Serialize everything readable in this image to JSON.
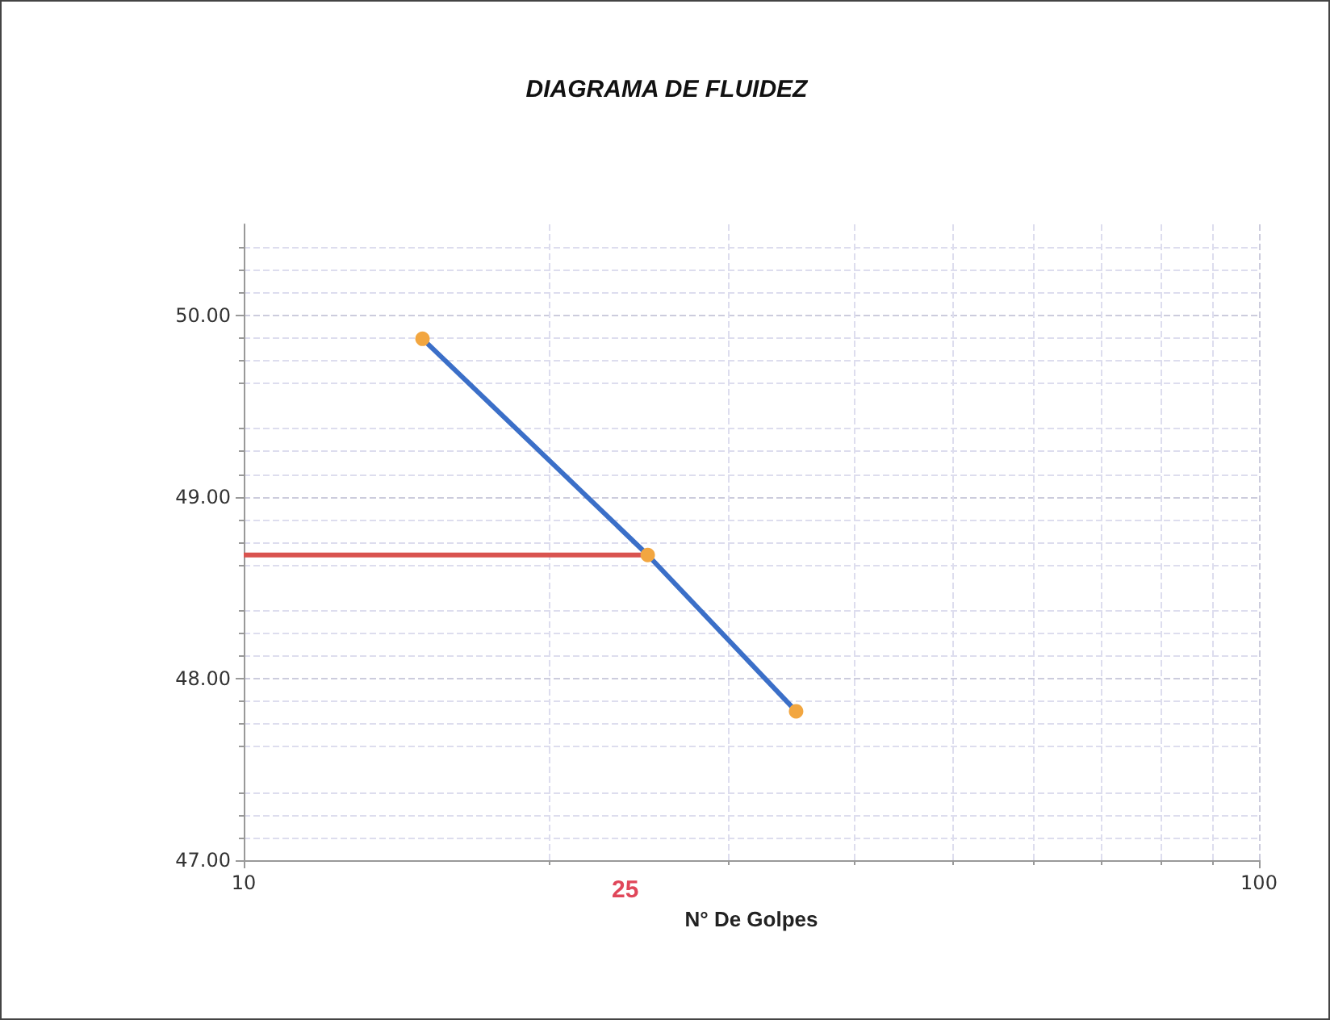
{
  "chart_data": {
    "type": "line",
    "title": "DIAGRAMA DE FLUIDEZ",
    "xlabel": "N° De Golpes",
    "log": "x",
    "xlim": [
      10,
      100
    ],
    "xticks": [
      10,
      100
    ],
    "ylim": [
      47,
      50.5
    ],
    "yticks": [
      {
        "value": 47,
        "label": "47.00"
      },
      {
        "value": 48,
        "label": "48.00"
      },
      {
        "value": 49,
        "label": "49.00"
      },
      {
        "value": 50,
        "label": "50.00"
      }
    ],
    "grid": true,
    "marker": "circle",
    "series": [
      {
        "x": [
          15,
          25,
          35
        ],
        "values": [
          49.87,
          48.68,
          47.82
        ],
        "color": "#3b6fc8",
        "colors": [
          "#f2a640",
          "#f2a640",
          "#f2a640"
        ]
      },
      {
        "x": [
          10,
          25
        ],
        "values": [
          48.68,
          48.68
        ],
        "color": "#d9534f",
        "marker": "none"
      }
    ],
    "annotations": [
      "25"
    ]
  }
}
